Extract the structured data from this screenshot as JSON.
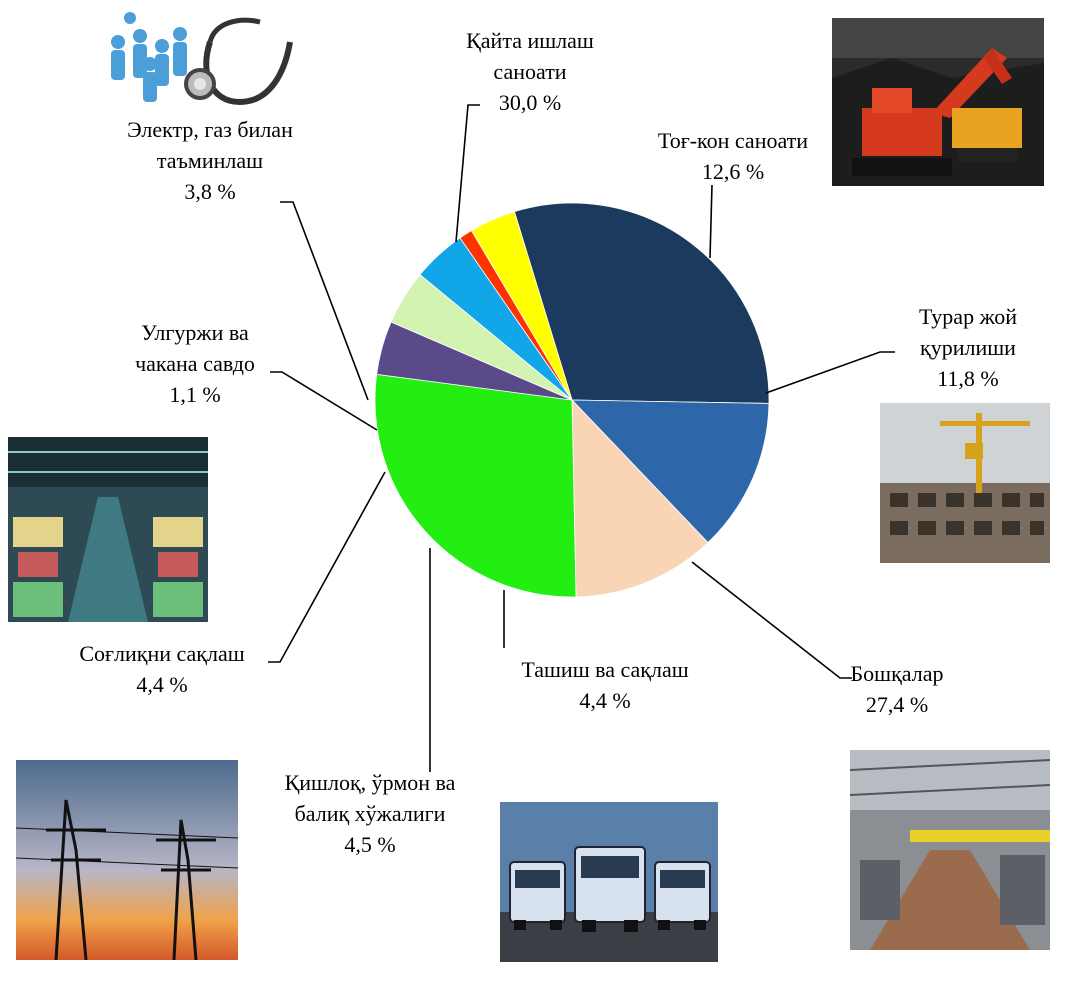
{
  "chart_data": {
    "type": "pie",
    "title": "",
    "slices": [
      {
        "label": [
          "Қайта ишлаш",
          "саноати"
        ],
        "value_text": "30,0 %",
        "value": 30.0,
        "color": "#1b3a5e"
      },
      {
        "label": [
          "Тоғ-кон саноати"
        ],
        "value_text": "12,6 %",
        "value": 12.6,
        "color": "#2e66aa"
      },
      {
        "label": [
          "Турар жой",
          "қурилиши"
        ],
        "value_text": "11,8 %",
        "value": 11.8,
        "color": "#f9d5b5"
      },
      {
        "label": [
          "Бошқалар"
        ],
        "value_text": "27,4 %",
        "value": 27.4,
        "color": "#22ee11"
      },
      {
        "label": [
          "Ташиш ва сақлаш"
        ],
        "value_text": "4,4 %",
        "value": 4.4,
        "color": "#5b4a8a"
      },
      {
        "label": [
          "Қишлоқ, ўрмон ва",
          "балиқ хўжалиги"
        ],
        "value_text": "4,5 %",
        "value": 4.5,
        "color": "#d2f4b0"
      },
      {
        "label": [
          "Соғлиқни сақлаш"
        ],
        "value_text": "4,4 %",
        "value": 4.4,
        "color": "#10a6e8"
      },
      {
        "label": [
          "Улгуржи ва",
          "чакана савдо"
        ],
        "value_text": "1,1 %",
        "value": 1.1,
        "color": "#ff3300"
      },
      {
        "label": [
          "Электр, газ билан",
          "таъминлаш"
        ],
        "value_text": "3,8 %",
        "value": 3.8,
        "color": "#ffff00"
      }
    ]
  },
  "images": [
    {
      "name": "healthcare-stethoscope-image"
    },
    {
      "name": "mining-excavator-image"
    },
    {
      "name": "construction-crane-image"
    },
    {
      "name": "market-warehouse-image"
    },
    {
      "name": "factory-interior-image"
    },
    {
      "name": "power-lines-image"
    },
    {
      "name": "trucks-image"
    }
  ]
}
